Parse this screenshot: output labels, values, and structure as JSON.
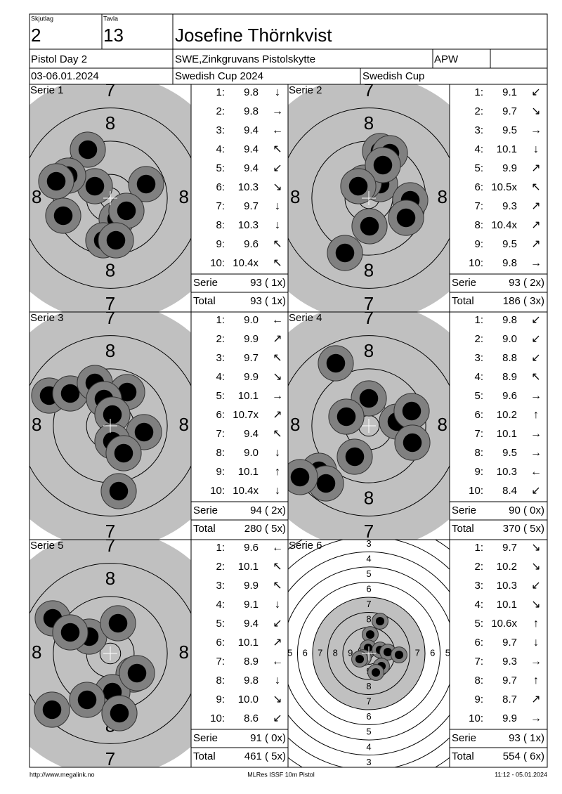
{
  "header": {
    "skjutlag_label": "Skjutlag",
    "skjutlag": "2",
    "tavla_label": "Tavla",
    "tavla": "13",
    "name": "Josefine Thörnkvist",
    "event": "Pistol Day 2",
    "club": "SWE,Zinkgruvans Pistolskytte",
    "class": "APW",
    "dates": "03-06.01.2024",
    "competition": "Swedish Cup 2024",
    "cup": "Swedish Cup"
  },
  "series": [
    {
      "title": "Serie 1",
      "ring_labels": [
        "7",
        "8"
      ],
      "shots": [
        {
          "n": "1:",
          "score": "9.8",
          "dir": "↓"
        },
        {
          "n": "2:",
          "score": "9.8",
          "dir": "→"
        },
        {
          "n": "3:",
          "score": "9.4",
          "dir": "←"
        },
        {
          "n": "4:",
          "score": "9.4",
          "dir": "↖"
        },
        {
          "n": "5:",
          "score": "9.4",
          "dir": "↙"
        },
        {
          "n": "6:",
          "score": "10.3",
          "dir": "↘"
        },
        {
          "n": "7:",
          "score": "9.7",
          "dir": "↓"
        },
        {
          "n": "8:",
          "score": "10.3",
          "dir": "↓"
        },
        {
          "n": "9:",
          "score": "9.6",
          "dir": "↖"
        },
        {
          "n": "10:",
          "score": "10.4x",
          "dir": "↖"
        }
      ],
      "serie_label": "Serie",
      "serie": "93 ( 1x)",
      "total_label": "Total",
      "total": "93 ( 1x)"
    },
    {
      "title": "Serie 2",
      "ring_labels": [
        "7",
        "8"
      ],
      "shots": [
        {
          "n": "1:",
          "score": "9.1",
          "dir": "↙"
        },
        {
          "n": "2:",
          "score": "9.7",
          "dir": "↘"
        },
        {
          "n": "3:",
          "score": "9.5",
          "dir": "→"
        },
        {
          "n": "4:",
          "score": "10.1",
          "dir": "↓"
        },
        {
          "n": "5:",
          "score": "9.9",
          "dir": "↗"
        },
        {
          "n": "6:",
          "score": "10.5x",
          "dir": "↖"
        },
        {
          "n": "7:",
          "score": "9.3",
          "dir": "↗"
        },
        {
          "n": "8:",
          "score": "10.4x",
          "dir": "↗"
        },
        {
          "n": "9:",
          "score": "9.5",
          "dir": "↗"
        },
        {
          "n": "10:",
          "score": "9.8",
          "dir": "→"
        }
      ],
      "serie_label": "Serie",
      "serie": "93 ( 2x)",
      "total_label": "Total",
      "total": "186 ( 3x)"
    },
    {
      "title": "Serie 3",
      "ring_labels": [
        "7",
        "8"
      ],
      "shots": [
        {
          "n": "1:",
          "score": "9.0",
          "dir": "←"
        },
        {
          "n": "2:",
          "score": "9.9",
          "dir": "↗"
        },
        {
          "n": "3:",
          "score": "9.7",
          "dir": "↖"
        },
        {
          "n": "4:",
          "score": "9.9",
          "dir": "↘"
        },
        {
          "n": "5:",
          "score": "10.1",
          "dir": "→"
        },
        {
          "n": "6:",
          "score": "10.7x",
          "dir": "↗"
        },
        {
          "n": "7:",
          "score": "9.4",
          "dir": "↖"
        },
        {
          "n": "8:",
          "score": "9.0",
          "dir": "↓"
        },
        {
          "n": "9:",
          "score": "10.1",
          "dir": "↑"
        },
        {
          "n": "10:",
          "score": "10.4x",
          "dir": "↓"
        }
      ],
      "serie_label": "Serie",
      "serie": "94 ( 2x)",
      "total_label": "Total",
      "total": "280 ( 5x)"
    },
    {
      "title": "Serie 4",
      "ring_labels": [
        "7",
        "8"
      ],
      "shots": [
        {
          "n": "1:",
          "score": "9.8",
          "dir": "↙"
        },
        {
          "n": "2:",
          "score": "9.0",
          "dir": "↙"
        },
        {
          "n": "3:",
          "score": "8.8",
          "dir": "↙"
        },
        {
          "n": "4:",
          "score": "8.9",
          "dir": "↖"
        },
        {
          "n": "5:",
          "score": "9.6",
          "dir": "→"
        },
        {
          "n": "6:",
          "score": "10.2",
          "dir": "↑"
        },
        {
          "n": "7:",
          "score": "10.1",
          "dir": "→"
        },
        {
          "n": "8:",
          "score": "9.5",
          "dir": "→"
        },
        {
          "n": "9:",
          "score": "10.3",
          "dir": "←"
        },
        {
          "n": "10:",
          "score": "8.4",
          "dir": "↙"
        }
      ],
      "serie_label": "Serie",
      "serie": "90 ( 0x)",
      "total_label": "Total",
      "total": "370 ( 5x)"
    },
    {
      "title": "Serie 5",
      "ring_labels": [
        "7",
        "8"
      ],
      "shots": [
        {
          "n": "1:",
          "score": "9.6",
          "dir": "←"
        },
        {
          "n": "2:",
          "score": "10.1",
          "dir": "↖"
        },
        {
          "n": "3:",
          "score": "9.9",
          "dir": "↖"
        },
        {
          "n": "4:",
          "score": "9.1",
          "dir": "↓"
        },
        {
          "n": "5:",
          "score": "9.4",
          "dir": "↙"
        },
        {
          "n": "6:",
          "score": "10.1",
          "dir": "↗"
        },
        {
          "n": "7:",
          "score": "8.9",
          "dir": "←"
        },
        {
          "n": "8:",
          "score": "9.8",
          "dir": "↓"
        },
        {
          "n": "9:",
          "score": "10.0",
          "dir": "↘"
        },
        {
          "n": "10:",
          "score": "8.6",
          "dir": "↙"
        }
      ],
      "serie_label": "Serie",
      "serie": "91 ( 0x)",
      "total_label": "Total",
      "total": "461 ( 5x)"
    },
    {
      "title": "Serie 6",
      "ring_labels": [
        "3",
        "4",
        "5",
        "6",
        "7",
        "8",
        "9"
      ],
      "shots": [
        {
          "n": "1:",
          "score": "9.7",
          "dir": "↘"
        },
        {
          "n": "2:",
          "score": "10.2",
          "dir": "↘"
        },
        {
          "n": "3:",
          "score": "10.3",
          "dir": "↙"
        },
        {
          "n": "4:",
          "score": "10.1",
          "dir": "↘"
        },
        {
          "n": "5:",
          "score": "10.6x",
          "dir": "↑"
        },
        {
          "n": "6:",
          "score": "9.7",
          "dir": "↓"
        },
        {
          "n": "7:",
          "score": "9.3",
          "dir": "→"
        },
        {
          "n": "8:",
          "score": "9.7",
          "dir": "↑"
        },
        {
          "n": "9:",
          "score": "8.7",
          "dir": "↗"
        },
        {
          "n": "10:",
          "score": "9.9",
          "dir": "→"
        }
      ],
      "serie_label": "Serie",
      "serie": "93 ( 1x)",
      "total_label": "Total",
      "total": "554 ( 6x)"
    }
  ],
  "footer": {
    "url": "http://www.megalink.no",
    "program": "MLRes ISSF 10m Pistol",
    "timestamp": "11:12 - 05.01.2024"
  }
}
